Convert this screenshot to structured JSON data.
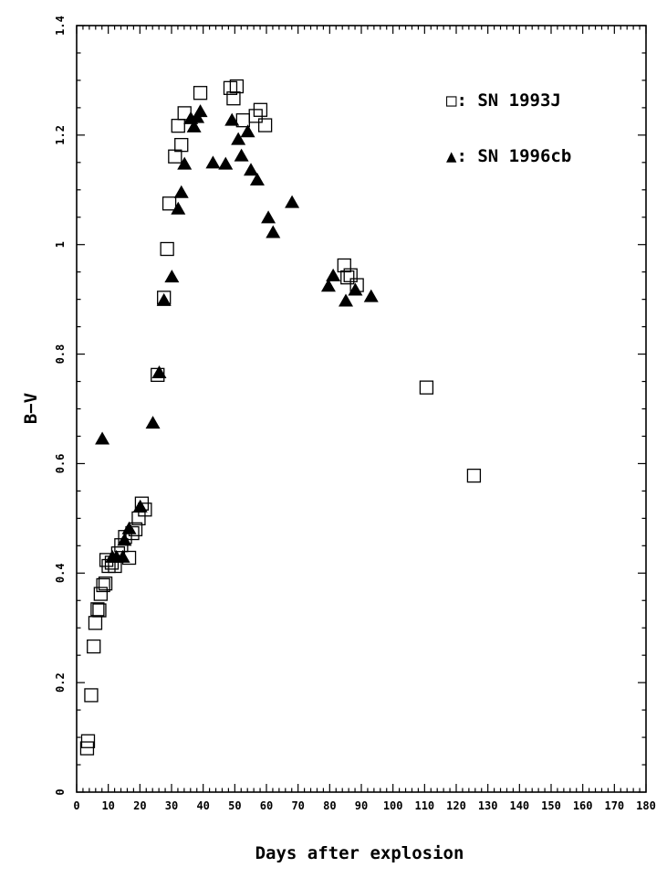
{
  "chart_data": {
    "type": "scatter",
    "title": "",
    "xlabel": "Days after explosion",
    "ylabel": "B−V",
    "xlim": [
      0,
      180
    ],
    "ylim": [
      0,
      1.4
    ],
    "x_ticks": [
      0,
      10,
      20,
      30,
      40,
      50,
      60,
      70,
      80,
      90,
      100,
      110,
      120,
      130,
      140,
      150,
      160,
      170,
      180
    ],
    "y_ticks": [
      0,
      0.2,
      0.4,
      0.6,
      0.8,
      1,
      1.2,
      1.4
    ],
    "y_tick_labels": [
      "0",
      "0.2",
      "0.4",
      "0.6",
      "0.8",
      "1",
      "1.2",
      "1.4"
    ],
    "grid": false,
    "legend_position": "top-right",
    "series": [
      {
        "name": "SN 1993J",
        "legend_label": "□: SN 1993J",
        "marker": "open-square",
        "points": [
          [
            3.3,
            0.08
          ],
          [
            3.6,
            0.093
          ],
          [
            4.6,
            0.177
          ],
          [
            5.4,
            0.266
          ],
          [
            5.9,
            0.309
          ],
          [
            6.6,
            0.334
          ],
          [
            7.2,
            0.332
          ],
          [
            7.6,
            0.362
          ],
          [
            8.4,
            0.378
          ],
          [
            9.1,
            0.381
          ],
          [
            9.4,
            0.424
          ],
          [
            10.1,
            0.413
          ],
          [
            11.1,
            0.419
          ],
          [
            12.1,
            0.413
          ],
          [
            13.1,
            0.436
          ],
          [
            14.1,
            0.451
          ],
          [
            15.3,
            0.466
          ],
          [
            16.6,
            0.428
          ],
          [
            17.6,
            0.473
          ],
          [
            18.6,
            0.48
          ],
          [
            19.6,
            0.5
          ],
          [
            20.6,
            0.527
          ],
          [
            21.6,
            0.516
          ],
          [
            25.6,
            0.762
          ],
          [
            27.6,
            0.903
          ],
          [
            28.6,
            0.992
          ],
          [
            29.3,
            1.075
          ],
          [
            31.1,
            1.161
          ],
          [
            32.1,
            1.217
          ],
          [
            33.1,
            1.182
          ],
          [
            34.1,
            1.24
          ],
          [
            39.1,
            1.277
          ],
          [
            48.6,
            1.286
          ],
          [
            49.6,
            1.267
          ],
          [
            50.6,
            1.289
          ],
          [
            52.6,
            1.227
          ],
          [
            56.6,
            1.235
          ],
          [
            58.1,
            1.246
          ],
          [
            59.6,
            1.218
          ],
          [
            84.6,
            0.962
          ],
          [
            85.6,
            0.94
          ],
          [
            86.6,
            0.944
          ],
          [
            88.6,
            0.926
          ],
          [
            110.6,
            0.739
          ],
          [
            125.6,
            0.578
          ]
        ]
      },
      {
        "name": "SN 1996cb",
        "legend_label": "▲: SN 1996cb",
        "marker": "filled-triangle",
        "points": [
          [
            8.1,
            0.645
          ],
          [
            11.3,
            0.429
          ],
          [
            12.6,
            0.429
          ],
          [
            14.6,
            0.429
          ],
          [
            15.1,
            0.46
          ],
          [
            16.6,
            0.481
          ],
          [
            20.1,
            0.521
          ],
          [
            24.1,
            0.674
          ],
          [
            26.1,
            0.766
          ],
          [
            27.6,
            0.898
          ],
          [
            30.1,
            0.941
          ],
          [
            32.1,
            1.065
          ],
          [
            33.1,
            1.095
          ],
          [
            34.1,
            1.147
          ],
          [
            36.1,
            1.23
          ],
          [
            37.1,
            1.215
          ],
          [
            38.1,
            1.232
          ],
          [
            39.1,
            1.243
          ],
          [
            43.1,
            1.149
          ],
          [
            47.1,
            1.147
          ],
          [
            49.1,
            1.227
          ],
          [
            51.1,
            1.192
          ],
          [
            52.1,
            1.162
          ],
          [
            54.1,
            1.206
          ],
          [
            55.1,
            1.136
          ],
          [
            57.1,
            1.118
          ],
          [
            60.6,
            1.049
          ],
          [
            62.1,
            1.022
          ],
          [
            68.1,
            1.077
          ],
          [
            79.6,
            0.924
          ],
          [
            81.1,
            0.943
          ],
          [
            85.1,
            0.897
          ],
          [
            88.1,
            0.917
          ],
          [
            93.1,
            0.905
          ]
        ]
      }
    ]
  }
}
